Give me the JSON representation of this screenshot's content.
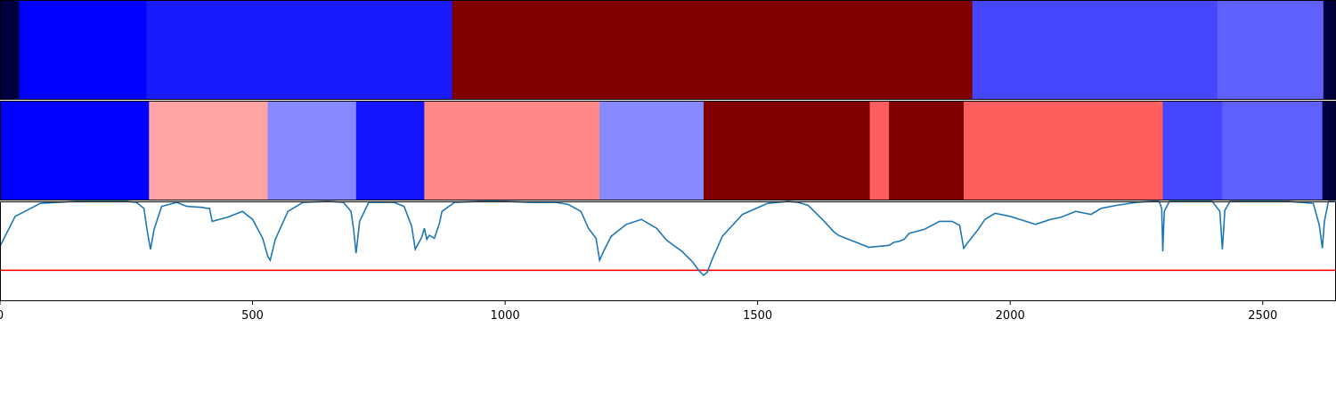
{
  "chart_data": {
    "type": "heatmap",
    "xlim": [
      0,
      2645
    ],
    "x_ticks": [
      0,
      500,
      1000,
      1500,
      2000,
      2500
    ],
    "x_tick_labels": [
      "0",
      "500",
      "1000",
      "1500",
      "2000",
      "2500"
    ],
    "rows": [
      {
        "segments": [
          {
            "start": 0,
            "end": 38,
            "color": "#000040"
          },
          {
            "start": 38,
            "end": 290,
            "color": "#0000ff"
          },
          {
            "start": 290,
            "end": 895,
            "color": "#1a1aff"
          },
          {
            "start": 895,
            "end": 1925,
            "color": "#800000"
          },
          {
            "start": 1925,
            "end": 2410,
            "color": "#4646ff"
          },
          {
            "start": 2410,
            "end": 2620,
            "color": "#6060ff"
          },
          {
            "start": 2620,
            "end": 2645,
            "color": "#000040"
          }
        ]
      },
      {
        "segments": [
          {
            "start": 0,
            "end": 295,
            "color": "#0000ff"
          },
          {
            "start": 295,
            "end": 530,
            "color": "#ffa4a4"
          },
          {
            "start": 530,
            "end": 705,
            "color": "#8888ff"
          },
          {
            "start": 705,
            "end": 840,
            "color": "#1414ff"
          },
          {
            "start": 840,
            "end": 1187,
            "color": "#ff8888"
          },
          {
            "start": 1187,
            "end": 1393,
            "color": "#8888ff"
          },
          {
            "start": 1393,
            "end": 1722,
            "color": "#800000"
          },
          {
            "start": 1722,
            "end": 1760,
            "color": "#ff5e5e"
          },
          {
            "start": 1760,
            "end": 1908,
            "color": "#800000"
          },
          {
            "start": 1908,
            "end": 2302,
            "color": "#ff5e5e"
          },
          {
            "start": 2302,
            "end": 2420,
            "color": "#4646ff"
          },
          {
            "start": 2420,
            "end": 2618,
            "color": "#6060ff"
          },
          {
            "start": 2618,
            "end": 2645,
            "color": "#000040"
          }
        ]
      }
    ],
    "line_panel": {
      "ylim": [
        0,
        1
      ],
      "line_color": "#1f77b4",
      "threshold": 0.31,
      "threshold_color": "#ff0000",
      "x": [
        0,
        30,
        80,
        150,
        250,
        270,
        285,
        290,
        295,
        298,
        305,
        320,
        350,
        370,
        400,
        410,
        415,
        420,
        450,
        480,
        500,
        520,
        530,
        535,
        545,
        570,
        600,
        650,
        680,
        695,
        700,
        705,
        712,
        730,
        780,
        800,
        815,
        822,
        835,
        840,
        845,
        850,
        860,
        870,
        875,
        900,
        950,
        1000,
        1050,
        1100,
        1125,
        1150,
        1165,
        1180,
        1187,
        1195,
        1210,
        1240,
        1270,
        1300,
        1320,
        1350,
        1370,
        1385,
        1393,
        1400,
        1410,
        1430,
        1470,
        1520,
        1560,
        1580,
        1600,
        1630,
        1650,
        1660,
        1680,
        1700,
        1720,
        1740,
        1760,
        1770,
        1780,
        1790,
        1800,
        1830,
        1860,
        1885,
        1900,
        1908,
        1915,
        1935,
        1950,
        1970,
        2000,
        2050,
        2080,
        2100,
        2130,
        2160,
        2180,
        2210,
        2250,
        2280,
        2295,
        2300,
        2302,
        2305,
        2315,
        2350,
        2400,
        2415,
        2420,
        2425,
        2435,
        2470,
        2550,
        2600,
        2612,
        2618,
        2622,
        2630,
        2645
      ],
      "y": [
        0.55,
        0.85,
        0.98,
        1.0,
        1.0,
        0.99,
        0.93,
        0.75,
        0.6,
        0.52,
        0.72,
        0.95,
        0.99,
        0.95,
        0.94,
        0.93,
        0.93,
        0.8,
        0.84,
        0.9,
        0.82,
        0.63,
        0.45,
        0.41,
        0.62,
        0.9,
        0.99,
        1.0,
        0.99,
        0.9,
        0.72,
        0.48,
        0.8,
        0.99,
        0.99,
        0.95,
        0.75,
        0.52,
        0.64,
        0.73,
        0.62,
        0.66,
        0.63,
        0.78,
        0.9,
        0.99,
        1.0,
        1.0,
        0.99,
        0.99,
        0.97,
        0.9,
        0.73,
        0.63,
        0.41,
        0.5,
        0.65,
        0.77,
        0.82,
        0.73,
        0.61,
        0.5,
        0.4,
        0.3,
        0.26,
        0.29,
        0.42,
        0.65,
        0.87,
        0.98,
        1.0,
        0.99,
        0.96,
        0.81,
        0.7,
        0.66,
        0.62,
        0.58,
        0.54,
        0.55,
        0.56,
        0.59,
        0.6,
        0.62,
        0.68,
        0.72,
        0.8,
        0.8,
        0.76,
        0.53,
        0.58,
        0.71,
        0.82,
        0.88,
        0.85,
        0.77,
        0.82,
        0.84,
        0.9,
        0.87,
        0.93,
        0.96,
        0.99,
        1.0,
        1.0,
        0.93,
        0.5,
        0.9,
        1.0,
        1.0,
        1.0,
        0.9,
        0.52,
        0.91,
        1.0,
        1.0,
        1.0,
        0.98,
        0.76,
        0.53,
        0.8,
        1.0,
        1.0
      ]
    }
  }
}
